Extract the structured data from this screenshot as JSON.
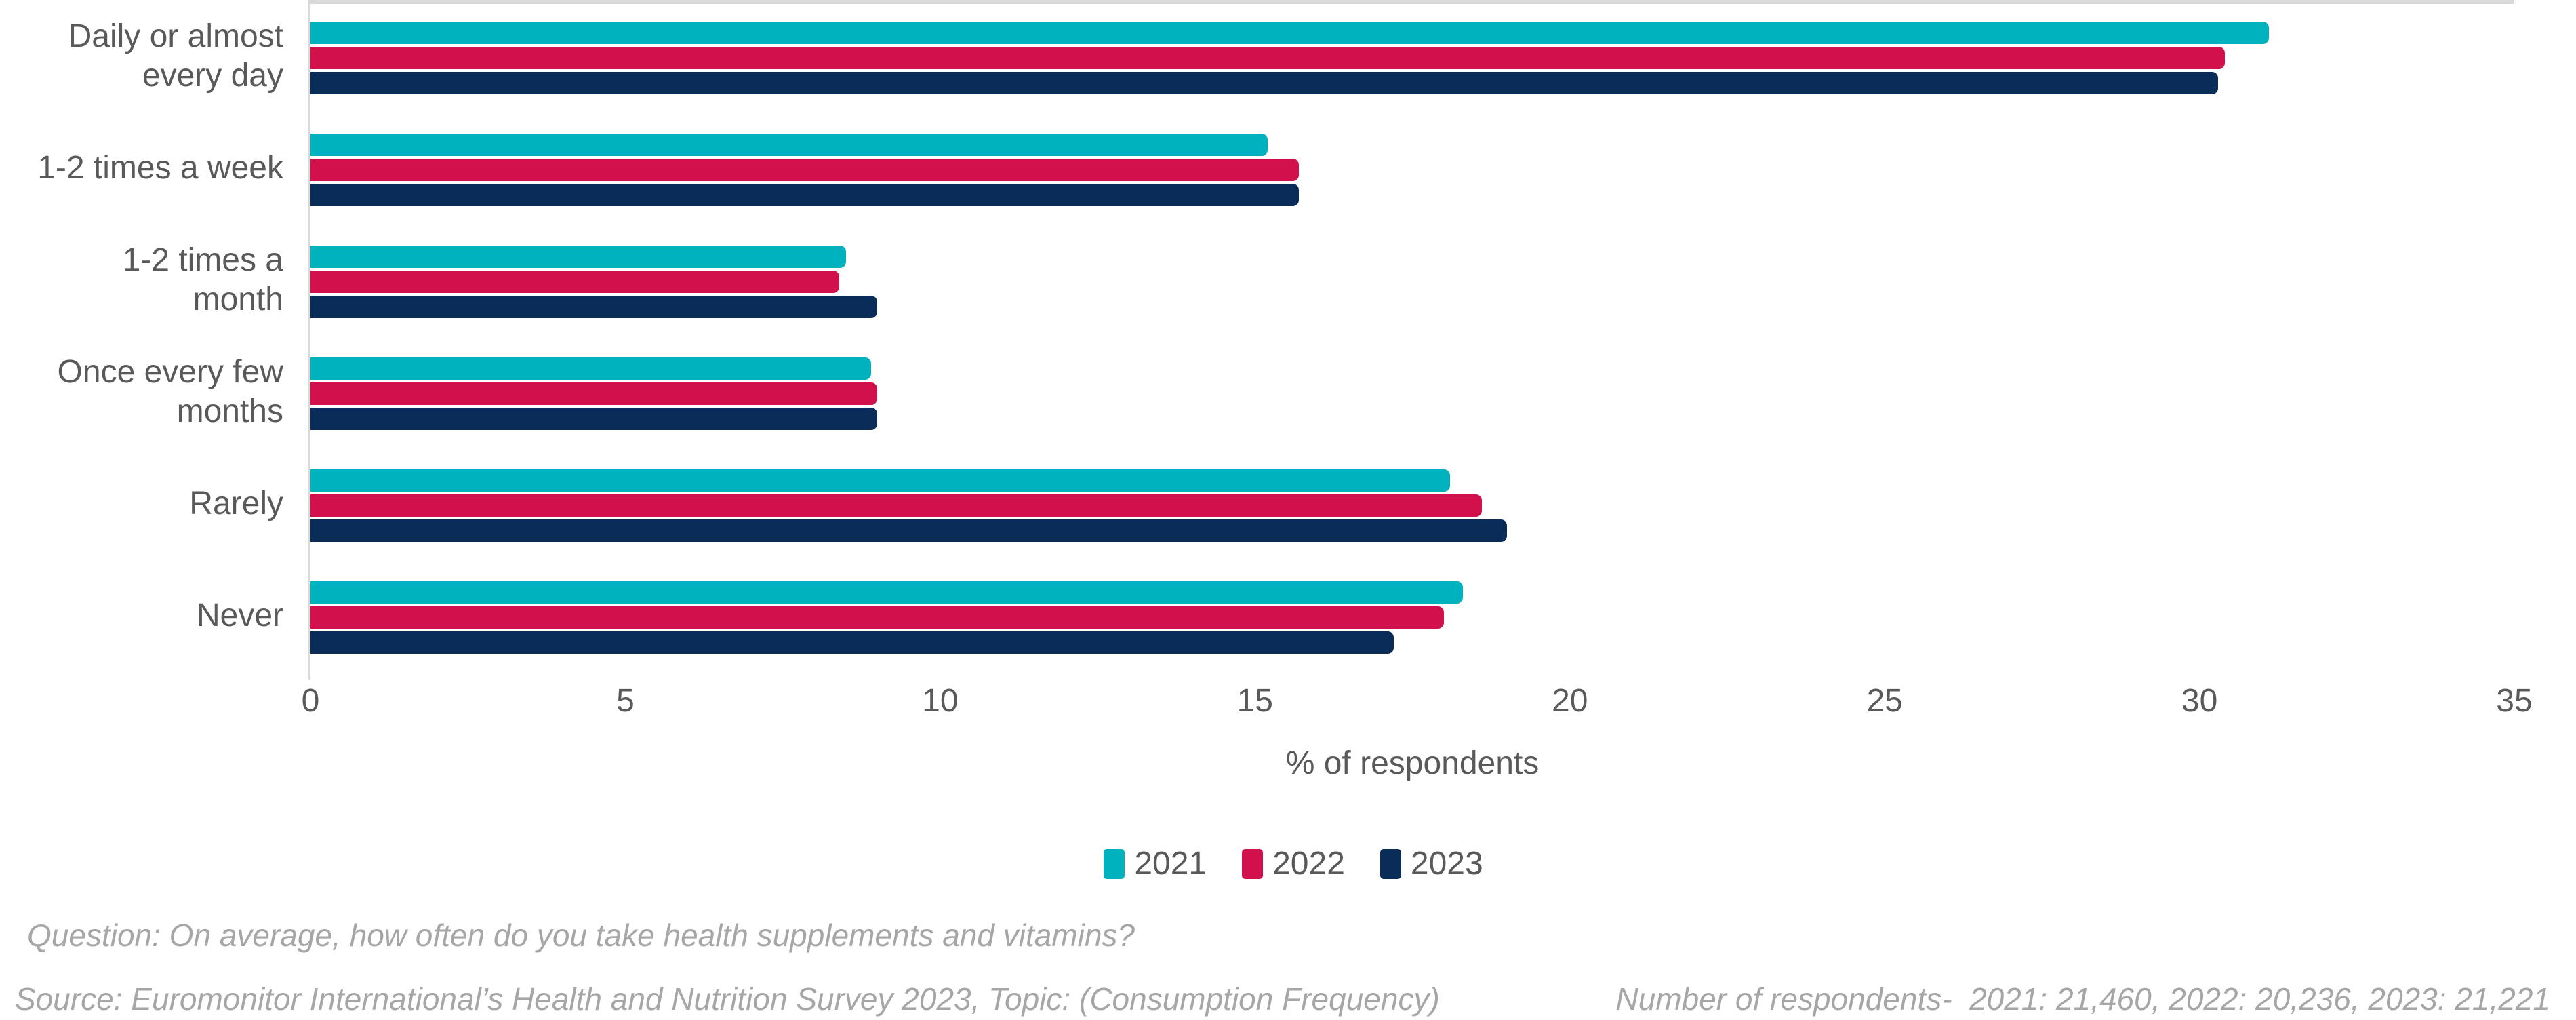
{
  "chart_data": {
    "type": "bar",
    "orientation": "horizontal",
    "categories": [
      "Daily or almost\nevery day",
      "1-2 times a week",
      "1-2 times a\nmonth",
      "Once every few\nmonths",
      "Rarely",
      "Never"
    ],
    "series": [
      {
        "name": "2021",
        "color": "#00b1be",
        "values": [
          31.1,
          15.2,
          8.5,
          8.9,
          18.1,
          18.3
        ]
      },
      {
        "name": "2022",
        "color": "#d2114c",
        "values": [
          30.4,
          15.7,
          8.4,
          9.0,
          18.6,
          18.0
        ]
      },
      {
        "name": "2023",
        "color": "#0a2c58",
        "values": [
          30.3,
          15.7,
          9.0,
          9.0,
          19.0,
          17.2
        ]
      }
    ],
    "xlabel": "% of respondents",
    "xlim": [
      0,
      35
    ],
    "xticks": [
      0,
      5,
      10,
      15,
      20,
      25,
      30,
      35
    ],
    "grid": false,
    "legend_position": "bottom",
    "axis_color": "#d9d9d9",
    "text_color": "#595959"
  },
  "footer": {
    "question": "Question: On average, how often do you take health supplements and vitamins?",
    "source": "Source: Euromonitor International’s Health and Nutrition Survey 2023, Topic: (Consumption Frequency)",
    "respondents": "Number of respondents-  2021: 21,460, 2022: 20,236, 2023: 21,221"
  }
}
